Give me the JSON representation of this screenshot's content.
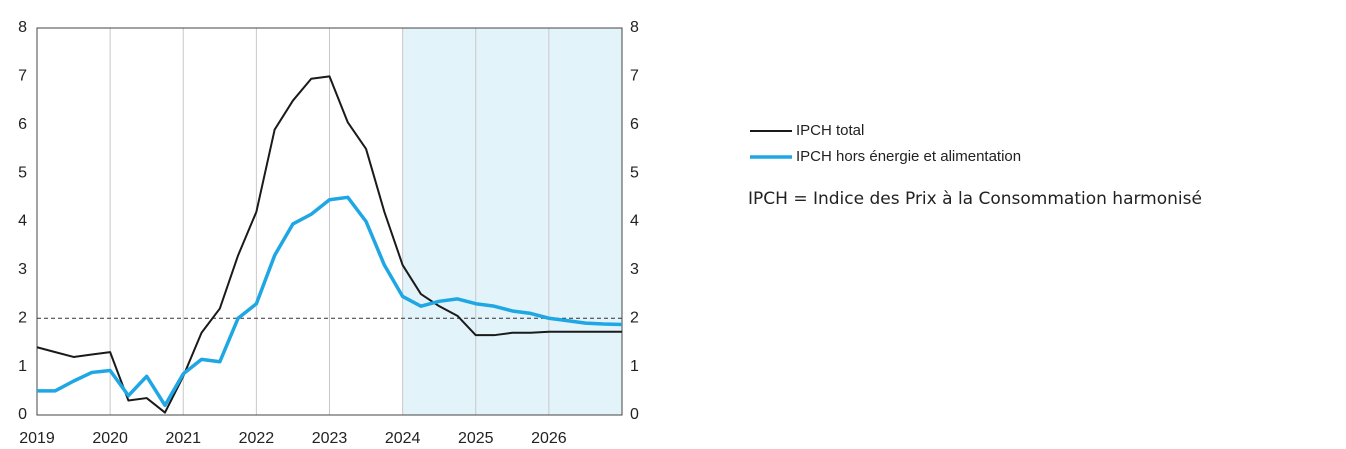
{
  "chart_data": {
    "type": "line",
    "x": [
      2019,
      2019.25,
      2019.5,
      2019.75,
      2020,
      2020.25,
      2020.5,
      2020.75,
      2021,
      2021.25,
      2021.5,
      2021.75,
      2022,
      2022.25,
      2022.5,
      2022.75,
      2023,
      2023.25,
      2023.5,
      2023.75,
      2024,
      2024.25,
      2024.5,
      2024.75,
      2025,
      2025.25,
      2025.5,
      2025.75,
      2026,
      2026.25,
      2026.5,
      2026.75,
      2027
    ],
    "series": [
      {
        "name": "IPCH total",
        "color": "#1a1a1a",
        "values": [
          1.4,
          1.3,
          1.2,
          1.25,
          1.3,
          0.3,
          0.35,
          0.05,
          0.8,
          1.7,
          2.2,
          3.3,
          4.2,
          5.9,
          6.5,
          6.95,
          7.0,
          6.05,
          5.5,
          4.2,
          3.1,
          2.5,
          2.25,
          2.05,
          1.65,
          1.65,
          1.7,
          1.7,
          1.72,
          1.72,
          1.72,
          1.72,
          1.72
        ]
      },
      {
        "name": "IPCH hors énergie et alimentation",
        "color": "#1ea7e4",
        "values": [
          0.5,
          0.5,
          0.7,
          0.88,
          0.92,
          0.4,
          0.8,
          0.2,
          0.85,
          1.15,
          1.1,
          2.0,
          2.3,
          3.3,
          3.95,
          4.15,
          4.45,
          4.5,
          4.0,
          3.1,
          2.45,
          2.25,
          2.35,
          2.4,
          2.3,
          2.25,
          2.15,
          2.1,
          2.0,
          1.95,
          1.9,
          1.88,
          1.87
        ]
      }
    ],
    "xlim": [
      2019,
      2027
    ],
    "xticks": [
      2019,
      2020,
      2021,
      2022,
      2023,
      2024,
      2025,
      2026
    ],
    "ylim": [
      0,
      8
    ],
    "yticks": [
      0,
      1,
      2,
      3,
      4,
      5,
      6,
      7,
      8
    ],
    "grid": true,
    "reference_line": 2,
    "shaded_from": 2024,
    "note": "IPCH = Indice des Prix à la Consommation harmonisé"
  }
}
